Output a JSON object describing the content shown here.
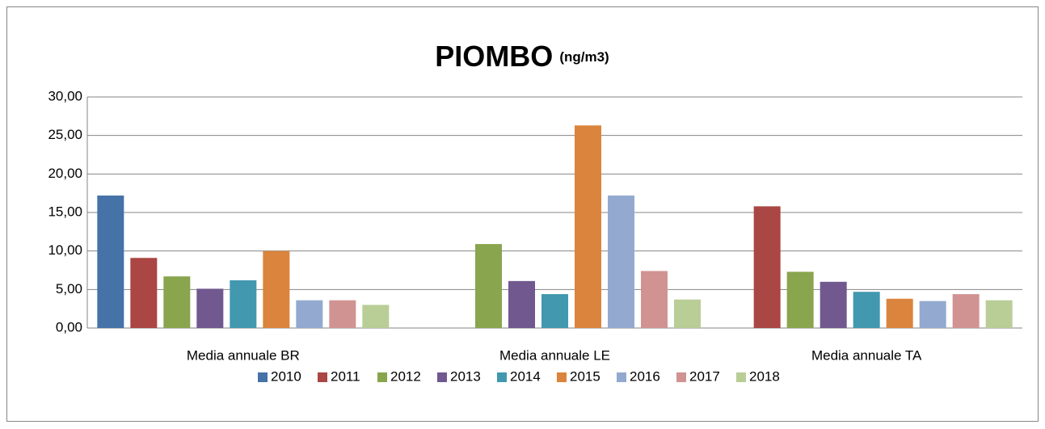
{
  "chart_data": {
    "type": "bar",
    "title": "PIOMBO",
    "subtitle": "(ng/m3)",
    "categories": [
      "Media annuale BR",
      "Media annuale LE",
      "Media annuale TA"
    ],
    "series": [
      {
        "name": "2010",
        "color": "#4572a7",
        "values": [
          17.2,
          null,
          null
        ]
      },
      {
        "name": "2011",
        "color": "#aa4643",
        "values": [
          9.1,
          null,
          15.8
        ]
      },
      {
        "name": "2012",
        "color": "#89a54e",
        "values": [
          6.7,
          10.9,
          7.3
        ]
      },
      {
        "name": "2013",
        "color": "#71588f",
        "values": [
          5.1,
          6.1,
          6.0
        ]
      },
      {
        "name": "2014",
        "color": "#4198af",
        "values": [
          6.2,
          4.4,
          4.7
        ]
      },
      {
        "name": "2015",
        "color": "#db843d",
        "values": [
          10.0,
          26.3,
          3.8
        ]
      },
      {
        "name": "2016",
        "color": "#93a9cf",
        "values": [
          3.6,
          17.2,
          3.5
        ]
      },
      {
        "name": "2017",
        "color": "#d19392",
        "values": [
          3.6,
          7.4,
          4.4
        ]
      },
      {
        "name": "2018",
        "color": "#b9cd96",
        "values": [
          3.0,
          3.7,
          3.6
        ]
      }
    ],
    "ylim": [
      0,
      30
    ],
    "yticks": [
      {
        "value": 0,
        "label": "0,00"
      },
      {
        "value": 5,
        "label": "5,00"
      },
      {
        "value": 10,
        "label": "10,00"
      },
      {
        "value": 15,
        "label": "15,00"
      },
      {
        "value": 20,
        "label": "20,00"
      },
      {
        "value": 25,
        "label": "25,00"
      },
      {
        "value": 30,
        "label": "30,00"
      }
    ],
    "grid": true,
    "legend": "bottom"
  }
}
